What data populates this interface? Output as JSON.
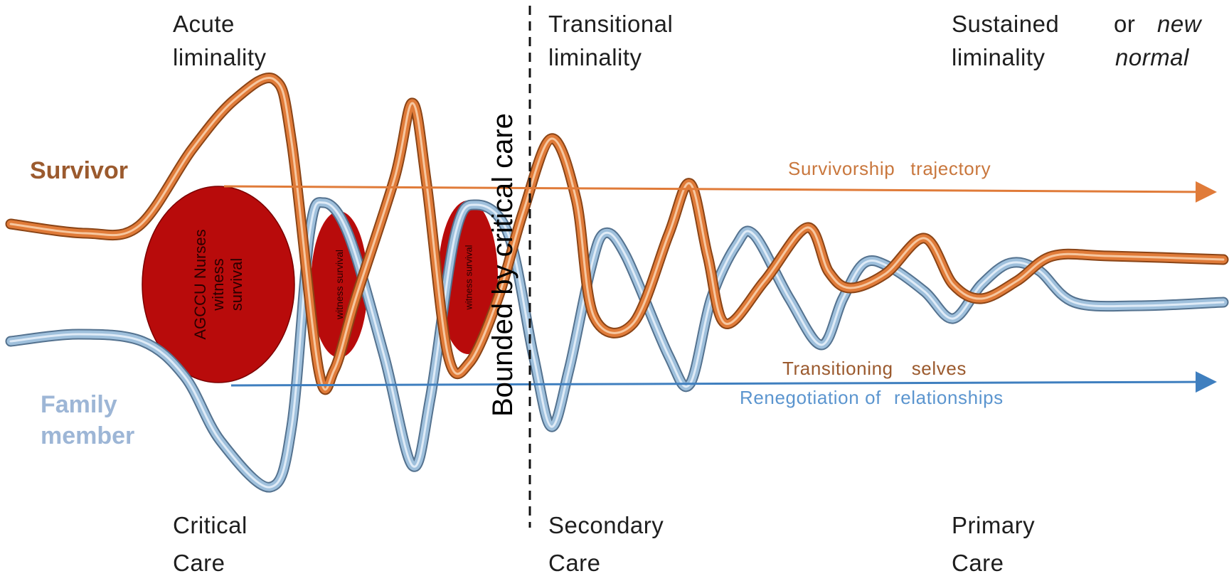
{
  "phases": {
    "acute": [
      "Acute",
      "liminality"
    ],
    "transitional": [
      "Transitional",
      "liminality"
    ],
    "sustained": [
      "Sustained",
      "liminality"
    ],
    "or_word": "or",
    "new_normal": [
      "new",
      "normal"
    ]
  },
  "care_settings": {
    "critical": [
      "Critical",
      "Care"
    ],
    "secondary": [
      "Secondary",
      "Care"
    ],
    "primary": [
      "Primary",
      "Care"
    ]
  },
  "roles": {
    "survivor": "Survivor",
    "family": [
      "Family",
      "member"
    ]
  },
  "trajectories": {
    "survivorship": [
      "Survivorship",
      "trajectory"
    ],
    "transitioning": [
      "Transitioning",
      "selves"
    ],
    "renegotiation": [
      "Renegotiation of",
      "relationships"
    ]
  },
  "divider_label": "Bounded by critical care",
  "ovals": {
    "large": [
      "AGCCU Nurses",
      "witness",
      "survival"
    ],
    "middle": "witness survival",
    "small": "witness survival"
  },
  "colors": {
    "survivor_orange": "#e07b39",
    "survivor_label": "#9b5a2e",
    "family_blue": "#9fc0dc",
    "family_label": "#9db6d6",
    "arrow_blue": "#3f7fbf",
    "oval_red": "#b80b0b",
    "transitioning_label": "#9b5a2e",
    "renegotiation_label": "#5b95cf"
  }
}
